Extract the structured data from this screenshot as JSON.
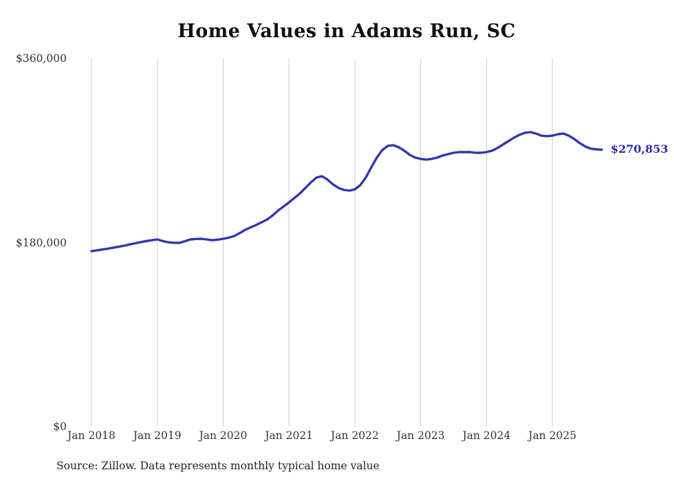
{
  "page": {
    "title": "Home Values in Adams Run, SC",
    "source_text": "Source: Zillow. Data represents monthly typical home value"
  },
  "chart_data": {
    "type": "line",
    "title": "Home Values in Adams Run, SC",
    "series_name": "Monthly typical home value",
    "x": [
      "2018-01",
      "2018-02",
      "2018-03",
      "2018-04",
      "2018-05",
      "2018-06",
      "2018-07",
      "2018-08",
      "2018-09",
      "2018-10",
      "2018-11",
      "2018-12",
      "2019-01",
      "2019-02",
      "2019-03",
      "2019-04",
      "2019-05",
      "2019-06",
      "2019-07",
      "2019-08",
      "2019-09",
      "2019-10",
      "2019-11",
      "2019-12",
      "2020-01",
      "2020-02",
      "2020-03",
      "2020-04",
      "2020-05",
      "2020-06",
      "2020-07",
      "2020-08",
      "2020-09",
      "2020-10",
      "2020-11",
      "2020-12",
      "2021-01",
      "2021-02",
      "2021-03",
      "2021-04",
      "2021-05",
      "2021-06",
      "2021-07",
      "2021-08",
      "2021-09",
      "2021-10",
      "2021-11",
      "2021-12",
      "2022-01",
      "2022-02",
      "2022-03",
      "2022-04",
      "2022-05",
      "2022-06",
      "2022-07",
      "2022-08",
      "2022-09",
      "2022-10",
      "2022-11",
      "2022-12",
      "2023-01",
      "2023-02",
      "2023-03",
      "2023-04",
      "2023-05",
      "2023-06",
      "2023-07",
      "2023-08",
      "2023-09",
      "2023-10",
      "2023-11",
      "2023-12",
      "2024-01",
      "2024-02",
      "2024-03",
      "2024-04",
      "2024-05",
      "2024-06",
      "2024-07",
      "2024-08",
      "2024-09",
      "2024-10",
      "2024-11",
      "2024-12",
      "2025-01",
      "2025-02",
      "2025-03",
      "2025-04",
      "2025-05",
      "2025-06",
      "2025-07",
      "2025-08",
      "2025-09",
      "2025-10"
    ],
    "values": [
      171600,
      172400,
      173200,
      174100,
      175000,
      176000,
      177000,
      178200,
      179300,
      180400,
      181500,
      182300,
      183000,
      181500,
      180300,
      179800,
      179700,
      181200,
      183000,
      183500,
      183700,
      183000,
      182300,
      182800,
      183700,
      184800,
      186400,
      189200,
      192400,
      194900,
      197200,
      199800,
      202500,
      206500,
      211300,
      215200,
      219300,
      223700,
      228100,
      233500,
      238900,
      243600,
      244900,
      241600,
      236900,
      233500,
      231500,
      230800,
      232100,
      236200,
      243600,
      253700,
      263100,
      270500,
      274500,
      275200,
      273200,
      269800,
      265800,
      263100,
      261800,
      261100,
      261800,
      263100,
      265100,
      266500,
      267800,
      268500,
      268500,
      268500,
      267800,
      267800,
      268500,
      269800,
      272500,
      275900,
      279200,
      282600,
      285300,
      287300,
      288000,
      286600,
      284600,
      284000,
      284600,
      286000,
      286600,
      284600,
      281200,
      277200,
      273900,
      271800,
      271200,
      270853
    ],
    "x_tick_labels": [
      "Jan 2018",
      "Jan 2019",
      "Jan 2020",
      "Jan 2021",
      "Jan 2022",
      "Jan 2023",
      "Jan 2024",
      "Jan 2025"
    ],
    "y_tick_labels": [
      "$360,000",
      "$180,000",
      "$0"
    ],
    "y_tick_values": [
      360000,
      180000,
      0
    ],
    "ylim": [
      0,
      360000
    ],
    "grid": "vertical-lines-at-each-january",
    "legend": "none",
    "end_label": "$270,853",
    "line_color": "#3434b2",
    "end_label_color": "#2b2baa",
    "gridline_color": "#cccccc"
  }
}
